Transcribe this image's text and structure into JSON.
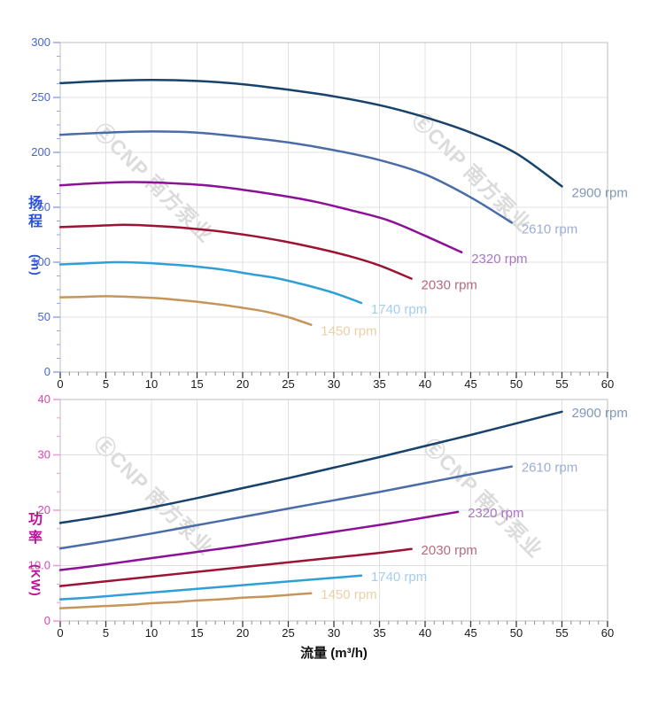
{
  "watermark": {
    "text": "ⒺCNP 南方泵业",
    "color": "#dbdbdb"
  },
  "chart_data": [
    {
      "type": "line",
      "title": "",
      "xlabel": "",
      "ylabel": "扬程 (m)",
      "ylabel_stack": [
        "扬",
        "程"
      ],
      "ylabel_unit": "(m)",
      "xlim": [
        0,
        60
      ],
      "ylim": [
        0,
        300
      ],
      "x_tick_labels": [
        "0",
        "5",
        "10",
        "15",
        "20",
        "25",
        "30",
        "35",
        "40",
        "45",
        "50",
        "55",
        "60"
      ],
      "y_tick_labels": [
        "0",
        "50",
        "100",
        "150",
        "200",
        "250",
        "300"
      ],
      "x_minor_per_major": 4,
      "y_minor_per_major": 3,
      "grid": true,
      "legend": "curve-end-labels",
      "colors": {
        "axis_title": "#2a52d8",
        "tick_labels": "#4a63d8",
        "tick_marks": "#95a5ea",
        "x_tick_labels": "#1a1a1a"
      },
      "series": [
        {
          "name": "2900 rpm",
          "color": "#17426b",
          "label_color": "#7f97ba",
          "x": [
            0,
            5,
            10,
            15,
            20,
            25,
            30,
            35,
            40,
            45,
            50,
            55
          ],
          "y": [
            263,
            265,
            266,
            265,
            262,
            257,
            251,
            243,
            232,
            218,
            199,
            169
          ]
        },
        {
          "name": "2610 rpm",
          "color": "#4a6da8",
          "label_color": "#9badd8",
          "x": [
            0,
            5,
            10,
            15,
            20,
            25,
            30,
            35,
            40,
            45,
            49.5
          ],
          "y": [
            216,
            218,
            219,
            218,
            214,
            209,
            202,
            193,
            180,
            159,
            136
          ]
        },
        {
          "name": "2320 rpm",
          "color": "#8c1196",
          "label_color": "#aa77c4",
          "x": [
            0,
            4,
            8,
            12,
            16,
            20,
            24,
            28,
            32,
            36,
            40,
            44
          ],
          "y": [
            170,
            172,
            173,
            172,
            170,
            166,
            161,
            155,
            147,
            138,
            124,
            109
          ]
        },
        {
          "name": "2030 rpm",
          "color": "#9c1334",
          "label_color": "#b56b7d",
          "x": [
            0,
            3.5,
            7,
            10.5,
            14,
            17.5,
            21,
            24.5,
            28,
            31.5,
            35,
            38.5
          ],
          "y": [
            132,
            133,
            134,
            133,
            131,
            128,
            124,
            119,
            113,
            106,
            97,
            85
          ]
        },
        {
          "name": "1740 rpm",
          "color": "#2f9fd8",
          "label_color": "#a3cfec",
          "x": [
            0,
            3,
            6,
            9,
            12,
            15,
            18,
            21,
            24,
            27,
            30,
            33
          ],
          "y": [
            98,
            99,
            100,
            99.5,
            98,
            96,
            93,
            89,
            85,
            79,
            72,
            63
          ]
        },
        {
          "name": "1450 rpm",
          "color": "#c6955a",
          "label_color": "#ead0a6",
          "x": [
            0,
            2.5,
            5,
            7.5,
            10,
            12.5,
            15,
            17.5,
            20,
            22.5,
            25,
            27.5
          ],
          "y": [
            68,
            68.5,
            69,
            68.5,
            67.5,
            66,
            64,
            61.5,
            58.5,
            55,
            50,
            43
          ]
        }
      ]
    },
    {
      "type": "line",
      "title": "",
      "xlabel": "流量 (m³/h)",
      "ylabel": "功率 (KW)",
      "ylabel_stack": [
        "功",
        "率"
      ],
      "ylabel_unit": "(KW)",
      "xlim": [
        0,
        60
      ],
      "ylim": [
        0,
        40
      ],
      "x_tick_labels": [
        "0",
        "5",
        "10",
        "15",
        "20",
        "25",
        "30",
        "35",
        "40",
        "45",
        "50",
        "55",
        "60"
      ],
      "y_tick_labels": [
        "0",
        "10.0",
        "20",
        "30",
        "40"
      ],
      "x_minor_per_major": 4,
      "y_minor_per_major": 2,
      "grid": true,
      "legend": "curve-end-labels",
      "colors": {
        "axis_title": "#bf0f9b",
        "tick_labels": "#d944b5",
        "tick_marks": "#ef9ad8",
        "x_tick_labels": "#1a1a1a"
      },
      "series": [
        {
          "name": "2900 rpm",
          "color": "#17426b",
          "label_color": "#7f97ba",
          "x": [
            0,
            5,
            10,
            15,
            20,
            25,
            30,
            35,
            40,
            45,
            50,
            55
          ],
          "y": [
            17.7,
            19,
            20.5,
            22.2,
            24,
            25.8,
            27.7,
            29.6,
            31.6,
            33.6,
            35.7,
            37.8
          ]
        },
        {
          "name": "2610 rpm",
          "color": "#4a6da8",
          "label_color": "#9badd8",
          "x": [
            0,
            5,
            10,
            15,
            20,
            25,
            30,
            35,
            40,
            45,
            49.5
          ],
          "y": [
            13.1,
            14.4,
            15.8,
            17.3,
            18.8,
            20.3,
            21.8,
            23.3,
            24.9,
            26.5,
            27.9
          ]
        },
        {
          "name": "2320 rpm",
          "color": "#8c1196",
          "label_color": "#aa77c4",
          "x": [
            0,
            4,
            8,
            12,
            16,
            20,
            24,
            28,
            32,
            36,
            40,
            43.6
          ],
          "y": [
            9.2,
            10,
            10.9,
            11.8,
            12.7,
            13.6,
            14.6,
            15.6,
            16.6,
            17.6,
            18.7,
            19.7
          ]
        },
        {
          "name": "2030 rpm",
          "color": "#9c1334",
          "label_color": "#b56b7d",
          "x": [
            0,
            3.5,
            7,
            10.5,
            14,
            17.5,
            21,
            24.5,
            28,
            31.5,
            35,
            38.5
          ],
          "y": [
            6.3,
            6.9,
            7.5,
            8.1,
            8.7,
            9.3,
            9.9,
            10.5,
            11.1,
            11.7,
            12.3,
            13.0
          ]
        },
        {
          "name": "1740 rpm",
          "color": "#2f9fd8",
          "label_color": "#a3cfec",
          "x": [
            0,
            3,
            6,
            9,
            12,
            15,
            18,
            21,
            24,
            27,
            30,
            33
          ],
          "y": [
            3.9,
            4.2,
            4.6,
            5.0,
            5.4,
            5.8,
            6.2,
            6.6,
            7.0,
            7.4,
            7.8,
            8.2
          ]
        },
        {
          "name": "1450 rpm",
          "color": "#c6955a",
          "label_color": "#ead0a6",
          "x": [
            0,
            2.5,
            5,
            7.5,
            10,
            12.5,
            15,
            17.5,
            20,
            22.5,
            25,
            27.5
          ],
          "y": [
            2.3,
            2.5,
            2.7,
            2.9,
            3.2,
            3.4,
            3.7,
            3.9,
            4.2,
            4.4,
            4.7,
            5.0
          ]
        }
      ]
    }
  ]
}
